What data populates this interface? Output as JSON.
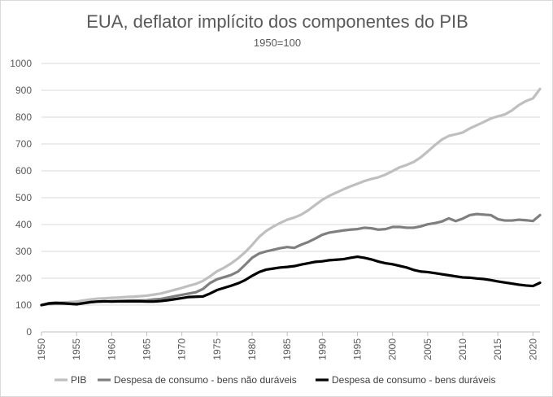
{
  "chart_data": {
    "type": "line",
    "title": "EUA, deflator implícito dos componentes do PIB",
    "subtitle": "1950=100",
    "xlabel": "",
    "ylabel": "",
    "xlim": [
      1950,
      2021
    ],
    "ylim": [
      0,
      1000
    ],
    "y_ticks": [
      "0",
      "100",
      "200",
      "300",
      "400",
      "500",
      "600",
      "700",
      "800",
      "900",
      "1000"
    ],
    "x_ticks": [
      "1950",
      "1955",
      "1960",
      "1965",
      "1970",
      "1975",
      "1980",
      "1985",
      "1990",
      "1995",
      "2000",
      "2005",
      "2010",
      "2015",
      "2020"
    ],
    "grid": "horizontal",
    "legend_position": "bottom",
    "x": [
      1950,
      1951,
      1952,
      1953,
      1954,
      1955,
      1956,
      1957,
      1958,
      1959,
      1960,
      1961,
      1962,
      1963,
      1964,
      1965,
      1966,
      1967,
      1968,
      1969,
      1970,
      1971,
      1972,
      1973,
      1974,
      1975,
      1976,
      1977,
      1978,
      1979,
      1980,
      1981,
      1982,
      1983,
      1984,
      1985,
      1986,
      1987,
      1988,
      1989,
      1990,
      1991,
      1992,
      1993,
      1994,
      1995,
      1996,
      1997,
      1998,
      1999,
      2000,
      2001,
      2002,
      2003,
      2004,
      2005,
      2006,
      2007,
      2008,
      2009,
      2010,
      2011,
      2012,
      2013,
      2014,
      2015,
      2016,
      2017,
      2018,
      2019,
      2020,
      2021
    ],
    "series": [
      {
        "name": "PIB",
        "color": "#bfbfbf",
        "values": [
          100,
          107,
          109,
          110,
          111,
          113,
          117,
          121,
          124,
          125,
          127,
          128,
          130,
          131,
          133,
          135,
          139,
          143,
          150,
          157,
          164,
          172,
          179,
          190,
          207,
          226,
          239,
          255,
          274,
          297,
          324,
          354,
          376,
          392,
          406,
          418,
          426,
          437,
          453,
          473,
          492,
          507,
          519,
          531,
          542,
          552,
          562,
          570,
          576,
          586,
          599,
          613,
          622,
          633,
          650,
          672,
          695,
          716,
          730,
          736,
          743,
          758,
          770,
          782,
          795,
          803,
          810,
          825,
          845,
          860,
          870,
          905
        ]
      },
      {
        "name": "Despesa de consumo - bens não duráveis",
        "color": "#7f7f7f",
        "values": [
          100,
          104,
          105,
          105,
          105,
          104,
          107,
          111,
          113,
          113,
          115,
          115,
          116,
          117,
          117,
          118,
          121,
          123,
          128,
          133,
          138,
          143,
          148,
          160,
          182,
          196,
          204,
          212,
          225,
          250,
          276,
          292,
          300,
          306,
          312,
          316,
          313,
          325,
          335,
          348,
          362,
          370,
          374,
          378,
          381,
          383,
          388,
          386,
          381,
          383,
          391,
          391,
          388,
          388,
          393,
          401,
          405,
          411,
          423,
          413,
          422,
          435,
          439,
          437,
          435,
          420,
          415,
          415,
          418,
          416,
          413,
          435
        ]
      },
      {
        "name": "Despesa de consumo - bens duráveis",
        "color": "#000000",
        "values": [
          100,
          106,
          108,
          107,
          105,
          103,
          107,
          111,
          113,
          114,
          113,
          114,
          114,
          114,
          114,
          113,
          113,
          115,
          118,
          122,
          126,
          130,
          131,
          132,
          143,
          156,
          164,
          172,
          181,
          193,
          209,
          223,
          232,
          236,
          240,
          242,
          245,
          251,
          256,
          261,
          263,
          267,
          269,
          271,
          276,
          280,
          276,
          270,
          262,
          256,
          252,
          246,
          240,
          231,
          225,
          223,
          219,
          215,
          211,
          207,
          203,
          202,
          199,
          197,
          193,
          188,
          184,
          180,
          176,
          173,
          171,
          183
        ]
      }
    ]
  }
}
